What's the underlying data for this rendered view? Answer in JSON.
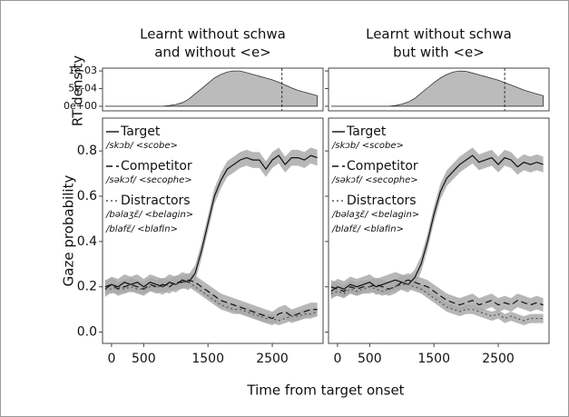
{
  "ylabel": "Gaze probability",
  "density_ylabel": "RT density",
  "xlabel": "Time from target onset",
  "chart_data": [
    {
      "type": "line",
      "title": [
        "Learnt without schwa",
        "and without <e>"
      ],
      "x": [
        -100,
        0,
        100,
        200,
        300,
        400,
        500,
        600,
        700,
        800,
        900,
        1000,
        1100,
        1200,
        1300,
        1400,
        1500,
        1600,
        1700,
        1800,
        1900,
        2000,
        2100,
        2200,
        2300,
        2400,
        2500,
        2600,
        2700,
        2800,
        2900,
        3000,
        3100,
        3200
      ],
      "xlim": [
        -140,
        3290
      ],
      "xticks": [
        0,
        500,
        1500,
        2500
      ],
      "ylim": [
        -0.05,
        0.945
      ],
      "yticks": [
        {
          "value": 0,
          "label": "0.0"
        },
        0.2,
        0.4,
        0.6,
        0.8
      ],
      "series": [
        {
          "name": "Target",
          "notes": [
            "/skɔb/ <scobe>"
          ],
          "color": "#111111",
          "dash": "solid",
          "band_color": "#aaaaaa",
          "error": 0.035,
          "values": [
            0.19,
            0.21,
            0.2,
            0.22,
            0.21,
            0.22,
            0.2,
            0.22,
            0.21,
            0.2,
            0.22,
            0.21,
            0.23,
            0.22,
            0.26,
            0.36,
            0.48,
            0.6,
            0.67,
            0.72,
            0.74,
            0.76,
            0.77,
            0.76,
            0.76,
            0.72,
            0.76,
            0.78,
            0.74,
            0.77,
            0.77,
            0.76,
            0.78,
            0.77
          ]
        },
        {
          "name": "Competitor",
          "notes": [
            "/səkɔf/ <secophe>"
          ],
          "color": "#111111",
          "dash": "dashed",
          "band_color": "#aaaaaa",
          "error": 0.03,
          "values": [
            0.2,
            0.21,
            0.19,
            0.2,
            0.21,
            0.2,
            0.19,
            0.21,
            0.2,
            0.21,
            0.2,
            0.22,
            0.22,
            0.23,
            0.22,
            0.2,
            0.18,
            0.16,
            0.14,
            0.13,
            0.12,
            0.11,
            0.1,
            0.09,
            0.08,
            0.07,
            0.06,
            0.08,
            0.09,
            0.07,
            0.08,
            0.09,
            0.1,
            0.1
          ]
        },
        {
          "name": "Distractors",
          "notes": [
            "/bəlaʒɛ̃/ <belagin>",
            "/blafɛ̃/ <blafin>"
          ],
          "color": "#555555",
          "dash": "dotted",
          "band_color": "#aaaaaa",
          "error": 0.02,
          "values": [
            0.19,
            0.19,
            0.2,
            0.19,
            0.2,
            0.19,
            0.19,
            0.2,
            0.2,
            0.2,
            0.21,
            0.21,
            0.22,
            0.22,
            0.2,
            0.18,
            0.16,
            0.14,
            0.12,
            0.11,
            0.1,
            0.1,
            0.09,
            0.08,
            0.07,
            0.06,
            0.06,
            0.05,
            0.06,
            0.07,
            0.07,
            0.08,
            0.08,
            0.09
          ]
        }
      ],
      "density": {
        "type": "area",
        "color": "#bbbbbb",
        "reference_x": 2650,
        "ylim": [
          -0.00013,
          0.00108
        ],
        "yticks": [
          {
            "value": 0,
            "label": "0e+00"
          },
          {
            "value": 0.0005,
            "label": "5e-04"
          },
          {
            "value": 0.001,
            "label": "1e-03"
          }
        ],
        "values": [
          0,
          0,
          0,
          0,
          0,
          0,
          0,
          0,
          0,
          0,
          2e-05,
          5e-05,
          0.0001,
          0.0002,
          0.00035,
          0.0005,
          0.00065,
          0.0008,
          0.0009,
          0.00097,
          0.001,
          0.001,
          0.00095,
          0.0009,
          0.00085,
          0.0008,
          0.00075,
          0.00068,
          0.0006,
          0.00052,
          0.00045,
          0.0004,
          0.00035,
          0.0003
        ]
      }
    },
    {
      "type": "line",
      "title": [
        "Learnt without schwa",
        "but with <e>"
      ],
      "x": [
        -100,
        0,
        100,
        200,
        300,
        400,
        500,
        600,
        700,
        800,
        900,
        1000,
        1100,
        1200,
        1300,
        1400,
        1500,
        1600,
        1700,
        1800,
        1900,
        2000,
        2100,
        2200,
        2300,
        2400,
        2500,
        2600,
        2700,
        2800,
        2900,
        3000,
        3100,
        3200
      ],
      "xlim": [
        -140,
        3290
      ],
      "xticks": [
        0,
        500,
        1500,
        2500
      ],
      "ylim": [
        -0.05,
        0.945
      ],
      "yticks": [
        {
          "value": 0,
          "label": "0.0"
        },
        0.2,
        0.4,
        0.6,
        0.8
      ],
      "series": [
        {
          "name": "Target",
          "notes": [
            "/skɔb/ <scobe>"
          ],
          "color": "#111111",
          "dash": "solid",
          "band_color": "#aaaaaa",
          "error": 0.035,
          "values": [
            0.18,
            0.2,
            0.19,
            0.21,
            0.2,
            0.21,
            0.22,
            0.2,
            0.21,
            0.22,
            0.23,
            0.22,
            0.21,
            0.24,
            0.3,
            0.4,
            0.52,
            0.62,
            0.68,
            0.71,
            0.74,
            0.76,
            0.78,
            0.75,
            0.76,
            0.77,
            0.74,
            0.77,
            0.76,
            0.73,
            0.75,
            0.74,
            0.75,
            0.74
          ]
        },
        {
          "name": "Competitor",
          "notes": [
            "/səkɔf/ <secophe>"
          ],
          "color": "#111111",
          "dash": "dashed",
          "band_color": "#aaaaaa",
          "error": 0.03,
          "values": [
            0.2,
            0.19,
            0.18,
            0.2,
            0.19,
            0.2,
            0.2,
            0.21,
            0.2,
            0.19,
            0.2,
            0.22,
            0.23,
            0.22,
            0.21,
            0.2,
            0.18,
            0.16,
            0.14,
            0.13,
            0.12,
            0.13,
            0.14,
            0.12,
            0.13,
            0.14,
            0.12,
            0.13,
            0.12,
            0.14,
            0.13,
            0.12,
            0.13,
            0.12
          ]
        },
        {
          "name": "Distractors",
          "notes": [
            "/bəlaʒɛ̃/ <belagin>",
            "/blafɛ̃/ <blafin>"
          ],
          "color": "#555555",
          "dash": "dotted",
          "band_color": "#aaaaaa",
          "error": 0.02,
          "values": [
            0.17,
            0.18,
            0.17,
            0.19,
            0.18,
            0.19,
            0.2,
            0.19,
            0.18,
            0.19,
            0.2,
            0.21,
            0.21,
            0.2,
            0.19,
            0.17,
            0.15,
            0.13,
            0.11,
            0.1,
            0.09,
            0.1,
            0.1,
            0.09,
            0.08,
            0.07,
            0.08,
            0.06,
            0.07,
            0.06,
            0.05,
            0.06,
            0.06,
            0.06
          ]
        }
      ],
      "density": {
        "type": "area",
        "color": "#bbbbbb",
        "reference_x": 2600,
        "ylim": [
          -0.00013,
          0.00108
        ],
        "yticks": [
          {
            "value": 0,
            "label": "0e+00"
          },
          {
            "value": 0.0005,
            "label": "5e-04"
          },
          {
            "value": 0.001,
            "label": "1e-03"
          }
        ],
        "values": [
          0,
          0,
          0,
          0,
          0,
          0,
          0,
          0,
          0,
          0,
          2e-05,
          6e-05,
          0.00012,
          0.00022,
          0.00037,
          0.00052,
          0.00067,
          0.0008,
          0.0009,
          0.00097,
          0.001,
          0.00099,
          0.00094,
          0.00089,
          0.00084,
          0.00079,
          0.00074,
          0.00067,
          0.0006,
          0.00053,
          0.00046,
          0.0004,
          0.00035,
          0.0003
        ]
      }
    }
  ]
}
